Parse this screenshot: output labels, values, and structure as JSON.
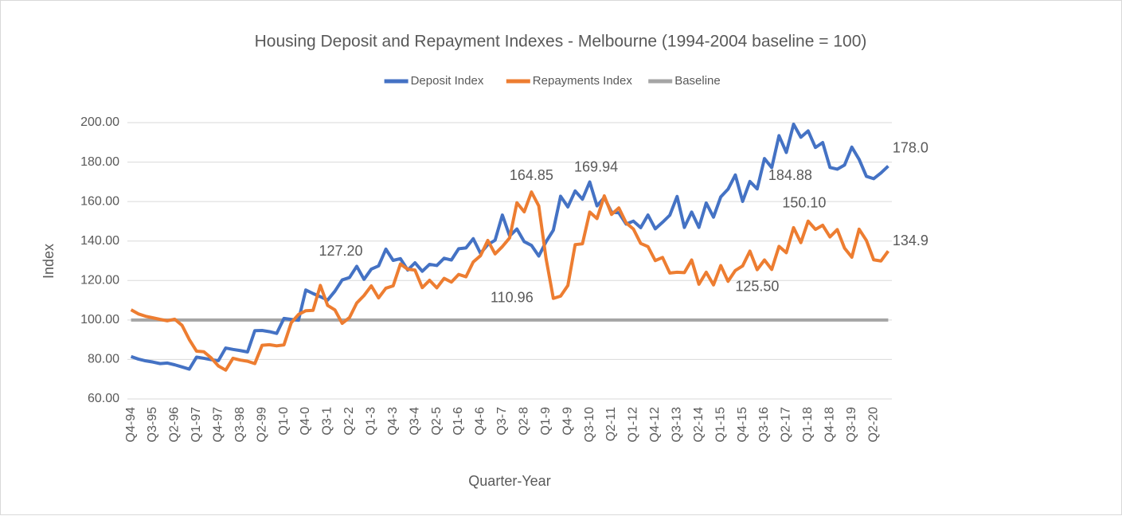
{
  "chart_data": {
    "type": "line",
    "title": "Housing Deposit and Repayment Indexes - Melbourne (1994-2004 baseline = 100)",
    "x_label": "Quarter-Year",
    "y_label": "Index",
    "legend": "top",
    "grid": true,
    "ylim": [
      60,
      200
    ],
    "yticks": [
      {
        "value": 60,
        "label": "60.00"
      },
      {
        "value": 80,
        "label": "80.00"
      },
      {
        "value": 100,
        "label": "100.00"
      },
      {
        "value": 120,
        "label": "120.00"
      },
      {
        "value": 140,
        "label": "140.00"
      },
      {
        "value": 160,
        "label": "160.00"
      },
      {
        "value": 180,
        "label": "180.00"
      },
      {
        "value": 200,
        "label": "200.00"
      }
    ],
    "categories": [
      "Q4-94",
      null,
      null,
      "Q3-95",
      null,
      null,
      "Q2-96",
      null,
      null,
      "Q1-97",
      null,
      null,
      "Q4-97",
      null,
      null,
      "Q3-98",
      null,
      null,
      "Q2-99",
      null,
      null,
      "Q1-0",
      null,
      null,
      "Q4-0",
      null,
      null,
      "Q3-1",
      null,
      null,
      "Q2-2",
      null,
      null,
      "Q1-3",
      null,
      null,
      "Q4-3",
      null,
      null,
      "Q3-4",
      null,
      null,
      "Q2-5",
      null,
      null,
      "Q1-6",
      null,
      null,
      "Q4-6",
      null,
      null,
      "Q3-7",
      null,
      null,
      "Q2-8",
      null,
      null,
      "Q1-9",
      null,
      null,
      "Q4-9",
      null,
      null,
      "Q3-10",
      null,
      null,
      "Q2-11",
      null,
      null,
      "Q1-12",
      null,
      null,
      "Q4-12",
      null,
      null,
      "Q3-13",
      null,
      null,
      "Q2-14",
      null,
      null,
      "Q1-15",
      null,
      null,
      "Q4-15",
      null,
      null,
      "Q3-16",
      null,
      null,
      "Q2-17",
      null,
      null,
      "Q1-18",
      null,
      null,
      "Q4-18",
      null,
      null,
      "Q3-19",
      null,
      null,
      "Q2-20",
      null,
      null
    ],
    "series": [
      {
        "name": "Deposit Index",
        "color": "#4472c4",
        "values": [
          81.5,
          80.2,
          79.3,
          78.7,
          77.9,
          78.2,
          77.3,
          76.2,
          75.1,
          81.2,
          80.6,
          79.9,
          79.4,
          85.8,
          85.1,
          84.5,
          83.8,
          94.6,
          94.7,
          94.1,
          93.2,
          100.8,
          100.3,
          99.9,
          115.2,
          113.4,
          111.8,
          110.1,
          114.6,
          120.3,
          121.5,
          127.2,
          120.6,
          125.8,
          127.4,
          135.9,
          130.2,
          131.1,
          125.3,
          129.0,
          124.7,
          128.2,
          127.6,
          131.3,
          130.4,
          136.1,
          136.5,
          141.2,
          133.8,
          138.2,
          140.4,
          153.2,
          142.6,
          146.1,
          139.7,
          137.8,
          132.4,
          139.6,
          145.5,
          162.7,
          157.3,
          165.4,
          161.2,
          169.94,
          157.8,
          162.1,
          154.6,
          154.3,
          148.6,
          150.1,
          146.8,
          153.2,
          146.2,
          149.5,
          153.1,
          162.6,
          146.9,
          154.7,
          146.9,
          159.3,
          152.1,
          162.4,
          166.3,
          173.5,
          160.1,
          170.2,
          166.4,
          181.8,
          177.2,
          193.4,
          184.88,
          199.2,
          192.6,
          195.8,
          187.4,
          189.9,
          177.3,
          176.4,
          178.5,
          187.6,
          181.4,
          172.8,
          171.6,
          174.5,
          178.0
        ],
        "value_labels": {
          "31": "127.20",
          "63": "169.94",
          "90": "184.88",
          "104": "178.0"
        }
      },
      {
        "name": "Repayments Index",
        "color": "#ed7d31",
        "values": [
          105.2,
          103.1,
          101.9,
          101.1,
          100.3,
          99.6,
          100.4,
          97.3,
          90.1,
          84.2,
          83.9,
          80.8,
          76.7,
          74.6,
          80.6,
          79.7,
          79.1,
          77.9,
          87.2,
          87.5,
          86.9,
          87.4,
          98.6,
          102.8,
          104.7,
          104.9,
          117.5,
          107.4,
          105.1,
          98.3,
          101.2,
          108.6,
          112.4,
          117.3,
          111.2,
          116.1,
          117.3,
          128.4,
          125.7,
          125.3,
          116.4,
          120.1,
          116.3,
          121.1,
          119.2,
          123.1,
          121.9,
          129.4,
          132.6,
          140.3,
          133.5,
          137.2,
          141.6,
          159.4,
          154.8,
          164.85,
          157.8,
          131.2,
          110.96,
          112.1,
          117.5,
          138.2,
          138.6,
          154.7,
          151.4,
          162.9,
          153.5,
          156.8,
          149.2,
          146.1,
          138.8,
          137.2,
          130.1,
          131.7,
          123.8,
          124.2,
          124.0,
          130.4,
          118.1,
          124.2,
          117.8,
          127.6,
          119.6,
          125.1,
          127.4,
          134.9,
          125.5,
          130.4,
          125.6,
          137.3,
          134.1,
          146.8,
          139.2,
          150.1,
          145.9,
          148.0,
          142.1,
          145.8,
          136.4,
          131.8,
          146.0,
          140.3,
          130.5,
          129.9,
          134.9
        ],
        "value_labels": {
          "55": "164.85",
          "58": "110.96",
          "86": "125.50",
          "93": "150.10",
          "104": "134.9"
        }
      },
      {
        "name": "Baseline",
        "color": "#a5a5a5",
        "values": [
          100,
          100,
          100,
          100,
          100,
          100,
          100,
          100,
          100,
          100,
          100,
          100,
          100,
          100,
          100,
          100,
          100,
          100,
          100,
          100,
          100,
          100,
          100,
          100,
          100,
          100,
          100,
          100,
          100,
          100,
          100,
          100,
          100,
          100,
          100,
          100,
          100,
          100,
          100,
          100,
          100,
          100,
          100,
          100,
          100,
          100,
          100,
          100,
          100,
          100,
          100,
          100,
          100,
          100,
          100,
          100,
          100,
          100,
          100,
          100,
          100,
          100,
          100,
          100,
          100,
          100,
          100,
          100,
          100,
          100,
          100,
          100,
          100,
          100,
          100,
          100,
          100,
          100,
          100,
          100,
          100,
          100,
          100,
          100,
          100,
          100,
          100,
          100,
          100,
          100,
          100,
          100,
          100,
          100,
          100,
          100,
          100,
          100,
          100,
          100,
          100,
          100,
          100,
          100,
          100
        ]
      }
    ]
  }
}
